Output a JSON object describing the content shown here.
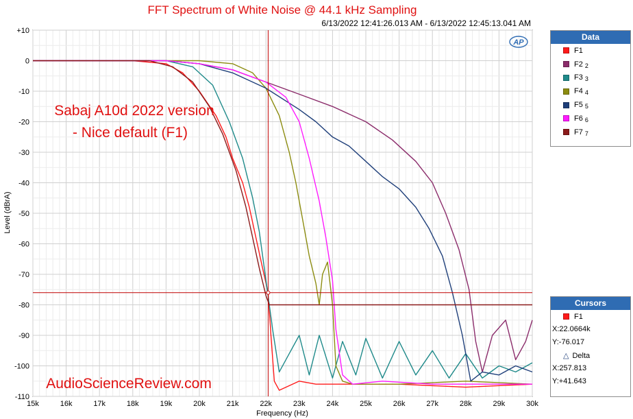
{
  "title": "FFT Spectrum of White Noise @ 44.1 kHz Sampling",
  "timestamp": "6/13/2022 12:41:26.013 AM - 6/13/2022 12:45:13.041 AM",
  "logo_text": "AP",
  "annotation": [
    "Sabaj A10d 2022 version",
    "- Nice default (F1)"
  ],
  "watermark": "AudioScienceReview.com",
  "colors": {
    "title": "#e01010",
    "annotation": "#e01010",
    "header": "#2f6cb3",
    "cursor": "#c00000"
  },
  "legend": {
    "header": "Data",
    "items": [
      {
        "label": "F1",
        "sub": "",
        "color": "#ff1a1a"
      },
      {
        "label": "F2",
        "sub": "2",
        "color": "#8b2c6b"
      },
      {
        "label": "F3",
        "sub": "3",
        "color": "#1f8a8a"
      },
      {
        "label": "F4",
        "sub": "4",
        "color": "#8c8c10"
      },
      {
        "label": "F5",
        "sub": "5",
        "color": "#1f3f7a"
      },
      {
        "label": "F6",
        "sub": "6",
        "color": "#ff1aff"
      },
      {
        "label": "F7",
        "sub": "7",
        "color": "#8b1a1a"
      }
    ]
  },
  "cursors": {
    "header": "Cursors",
    "name": "F1",
    "x": "X:22.0664k",
    "y": "Y:-76.017",
    "delta_label": "Delta",
    "dx": "X:257.813",
    "dy": "Y:+41.643",
    "x_value": 22066.4,
    "y_value": -76.017
  },
  "chart_data": {
    "type": "line",
    "title": "FFT Spectrum of White Noise @ 44.1 kHz Sampling",
    "xlabel": "Frequency (Hz)",
    "ylabel": "Level (dBrA)",
    "xlim": [
      15000,
      30000
    ],
    "ylim": [
      -110,
      10
    ],
    "x_ticks": [
      15000,
      16000,
      17000,
      18000,
      19000,
      20000,
      21000,
      22000,
      23000,
      24000,
      25000,
      26000,
      27000,
      28000,
      29000,
      30000
    ],
    "x_tick_labels": [
      "15k",
      "16k",
      "17k",
      "18k",
      "19k",
      "20k",
      "21k",
      "22k",
      "23k",
      "24k",
      "25k",
      "26k",
      "27k",
      "28k",
      "29k",
      "30k"
    ],
    "y_ticks": [
      10,
      0,
      -10,
      -20,
      -30,
      -40,
      -50,
      -60,
      -70,
      -80,
      -90,
      -100,
      -110
    ],
    "y_tick_labels": [
      "+10",
      "0",
      "-10",
      "-20",
      "-30",
      "-40",
      "-50",
      "-60",
      "-70",
      "-80",
      "-90",
      "-100",
      "-110"
    ],
    "grid": true,
    "legend_position": "right",
    "series": [
      {
        "name": "F1",
        "color": "#ff1a1a",
        "points": [
          [
            15000,
            0
          ],
          [
            18000,
            0
          ],
          [
            19000,
            -1
          ],
          [
            19500,
            -4
          ],
          [
            20000,
            -10
          ],
          [
            20500,
            -18
          ],
          [
            20800,
            -25
          ],
          [
            21000,
            -32
          ],
          [
            21300,
            -40
          ],
          [
            21500,
            -48
          ],
          [
            21700,
            -58
          ],
          [
            21900,
            -68
          ],
          [
            22066,
            -76
          ],
          [
            22150,
            -90
          ],
          [
            22250,
            -105
          ],
          [
            22400,
            -108
          ],
          [
            23000,
            -105
          ],
          [
            23500,
            -106
          ],
          [
            24500,
            -106
          ],
          [
            26000,
            -106
          ],
          [
            28000,
            -107
          ],
          [
            30000,
            -106
          ]
        ]
      },
      {
        "name": "F2",
        "color": "#8b2c6b",
        "points": [
          [
            15000,
            0
          ],
          [
            19000,
            0
          ],
          [
            20000,
            -1
          ],
          [
            21000,
            -3
          ],
          [
            22000,
            -7
          ],
          [
            23000,
            -11
          ],
          [
            24000,
            -15
          ],
          [
            25000,
            -20
          ],
          [
            25800,
            -26
          ],
          [
            26500,
            -33
          ],
          [
            27000,
            -40
          ],
          [
            27400,
            -50
          ],
          [
            27800,
            -62
          ],
          [
            28100,
            -75
          ],
          [
            28300,
            -92
          ],
          [
            28500,
            -102
          ],
          [
            28800,
            -90
          ],
          [
            29200,
            -85
          ],
          [
            29500,
            -98
          ],
          [
            29800,
            -92
          ],
          [
            30000,
            -85
          ]
        ]
      },
      {
        "name": "F3",
        "color": "#1f8a8a",
        "points": [
          [
            15000,
            0
          ],
          [
            19000,
            0
          ],
          [
            19800,
            -2
          ],
          [
            20400,
            -8
          ],
          [
            20900,
            -20
          ],
          [
            21300,
            -32
          ],
          [
            21600,
            -45
          ],
          [
            21800,
            -56
          ],
          [
            21950,
            -68
          ],
          [
            22100,
            -80
          ],
          [
            22200,
            -88
          ],
          [
            22400,
            -102
          ],
          [
            22700,
            -96
          ],
          [
            23000,
            -90
          ],
          [
            23300,
            -103
          ],
          [
            23600,
            -90
          ],
          [
            24000,
            -104
          ],
          [
            24300,
            -92
          ],
          [
            24700,
            -103
          ],
          [
            25000,
            -91
          ],
          [
            25500,
            -104
          ],
          [
            26000,
            -92
          ],
          [
            26500,
            -103
          ],
          [
            27000,
            -95
          ],
          [
            27500,
            -104
          ],
          [
            28000,
            -96
          ],
          [
            28500,
            -104
          ],
          [
            29000,
            -100
          ],
          [
            29500,
            -102
          ],
          [
            30000,
            -99
          ]
        ]
      },
      {
        "name": "F4",
        "color": "#8c8c10",
        "points": [
          [
            15000,
            0
          ],
          [
            20000,
            0
          ],
          [
            21000,
            -1
          ],
          [
            21600,
            -4
          ],
          [
            22000,
            -9
          ],
          [
            22400,
            -18
          ],
          [
            22700,
            -30
          ],
          [
            22900,
            -40
          ],
          [
            23100,
            -52
          ],
          [
            23300,
            -64
          ],
          [
            23500,
            -73
          ],
          [
            23600,
            -80
          ],
          [
            23700,
            -70
          ],
          [
            23850,
            -66
          ],
          [
            24000,
            -80
          ],
          [
            24100,
            -100
          ],
          [
            24300,
            -105
          ],
          [
            24600,
            -106
          ],
          [
            26000,
            -106
          ],
          [
            28000,
            -105
          ],
          [
            30000,
            -106
          ]
        ]
      },
      {
        "name": "F5",
        "color": "#1f3f7a",
        "points": [
          [
            15000,
            0
          ],
          [
            19000,
            0
          ],
          [
            20000,
            -1
          ],
          [
            21000,
            -4
          ],
          [
            22000,
            -9
          ],
          [
            23000,
            -16
          ],
          [
            23500,
            -20
          ],
          [
            24000,
            -25
          ],
          [
            24500,
            -28
          ],
          [
            25000,
            -33
          ],
          [
            25500,
            -38
          ],
          [
            26000,
            -42
          ],
          [
            26500,
            -48
          ],
          [
            26900,
            -55
          ],
          [
            27300,
            -64
          ],
          [
            27600,
            -76
          ],
          [
            27900,
            -90
          ],
          [
            28150,
            -105
          ],
          [
            28500,
            -102
          ],
          [
            29000,
            -103
          ],
          [
            29500,
            -100
          ],
          [
            30000,
            -102
          ]
        ]
      },
      {
        "name": "F6",
        "color": "#ff1aff",
        "points": [
          [
            15000,
            0
          ],
          [
            19000,
            0
          ],
          [
            20000,
            -1
          ],
          [
            21000,
            -3
          ],
          [
            22000,
            -7
          ],
          [
            22600,
            -12
          ],
          [
            23000,
            -20
          ],
          [
            23300,
            -32
          ],
          [
            23600,
            -46
          ],
          [
            23800,
            -58
          ],
          [
            24000,
            -72
          ],
          [
            24100,
            -88
          ],
          [
            24300,
            -103
          ],
          [
            24600,
            -106
          ],
          [
            25500,
            -105
          ],
          [
            27000,
            -106
          ],
          [
            28500,
            -106
          ],
          [
            30000,
            -106
          ]
        ]
      },
      {
        "name": "F7",
        "color": "#8b1a1a",
        "points": [
          [
            15000,
            0
          ],
          [
            18500,
            0
          ],
          [
            19200,
            -2
          ],
          [
            19800,
            -7
          ],
          [
            20300,
            -15
          ],
          [
            20700,
            -24
          ],
          [
            21100,
            -36
          ],
          [
            21400,
            -48
          ],
          [
            21600,
            -58
          ],
          [
            21800,
            -68
          ],
          [
            22000,
            -77
          ],
          [
            22100,
            -80
          ],
          [
            23000,
            -80
          ],
          [
            24000,
            -80
          ],
          [
            25000,
            -80
          ],
          [
            26000,
            -80
          ],
          [
            27000,
            -80
          ],
          [
            28000,
            -80
          ],
          [
            29000,
            -80
          ],
          [
            30000,
            -80
          ]
        ]
      }
    ]
  }
}
